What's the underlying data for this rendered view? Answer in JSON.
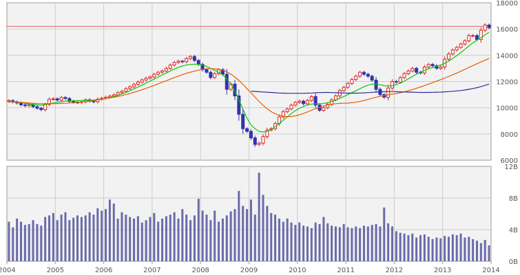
{
  "chart_data": [
    {
      "type": "candlestick",
      "x_unit": "year",
      "xlim": [
        2004.0,
        2014.0
      ],
      "ylim": [
        6000,
        18000
      ],
      "yticks": [
        6000,
        8000,
        10000,
        12000,
        14000,
        16000,
        18000
      ],
      "y_tick_labels": [
        "6000",
        "8000",
        "10000",
        "12000",
        "14000",
        "16000",
        "18000"
      ],
      "x_tick_labels": [
        "2004",
        "2005",
        "2006",
        "2007",
        "2008",
        "2009",
        "2010",
        "2011",
        "2012",
        "2013",
        "2014"
      ],
      "reference_line": 16200,
      "ohlc_monthly_close": [
        10540,
        10440,
        10360,
        10220,
        10150,
        10230,
        10080,
        9960,
        9850,
        10250,
        10650,
        10680,
        10580,
        10780,
        10700,
        10480,
        10420,
        10400,
        10450,
        10600,
        10500,
        10450,
        10650,
        10720,
        10800,
        10880,
        10980,
        11150,
        11250,
        11450,
        11600,
        11780,
        11950,
        12120,
        12250,
        12350,
        12550,
        12700,
        12800,
        13000,
        13250,
        13450,
        13550,
        13500,
        13750,
        13900,
        13600,
        13300,
        12900,
        12700,
        12300,
        12600,
        12900,
        12550,
        11400,
        11800,
        10900,
        9500,
        8400,
        8200,
        7700,
        7200,
        7300,
        7800,
        8300,
        8400,
        8800,
        9300,
        9700,
        9900,
        10200,
        10400,
        10500,
        10300,
        10550,
        10850,
        10200,
        9800,
        10000,
        10250,
        10600,
        10900,
        11300,
        11550,
        11850,
        12150,
        12400,
        12700,
        12550,
        12400,
        12100,
        11400,
        11000,
        10800,
        11500,
        12000,
        11950,
        12300,
        12600,
        12800,
        13000,
        12700,
        12650,
        13100,
        13300,
        13200,
        13000,
        13100,
        13700,
        14100,
        14400,
        14600,
        14850,
        15100,
        15500,
        15500,
        15200,
        15900,
        16300,
        16100
      ],
      "series": [
        {
          "name": "",
          "color": "#00cc00",
          "values": [
            10500,
            10470,
            10430,
            10380,
            10330,
            10290,
            10250,
            10220,
            10200,
            10230,
            10300,
            10360,
            10410,
            10460,
            10500,
            10520,
            10530,
            10540,
            10550,
            10560,
            10570,
            10580,
            10610,
            10650,
            10700,
            10770,
            10850,
            10940,
            11040,
            11160,
            11290,
            11430,
            11580,
            11730,
            11880,
            12030,
            12180,
            12340,
            12490,
            12640,
            12800,
            12950,
            13080,
            13180,
            13250,
            13300,
            13320,
            13310,
            13250,
            13150,
            13000,
            12850,
            12700,
            12500,
            12200,
            11800,
            11300,
            10600,
            9900,
            9200,
            8700,
            8400,
            8200,
            8150,
            8200,
            8350,
            8550,
            8800,
            9050,
            9300,
            9550,
            9780,
            9950,
            10100,
            10200,
            10280,
            10300,
            10300,
            10320,
            10380,
            10470,
            10580,
            10710,
            10850,
            11000,
            11150,
            11300,
            11450,
            11600,
            11720,
            11800,
            11800,
            11750,
            11680,
            11650,
            11680,
            11760,
            11880,
            12030,
            12200,
            12380,
            12550,
            12700,
            12840,
            12960,
            13060,
            13160,
            13260,
            13380,
            13550,
            13750,
            13970,
            14200,
            14450,
            14700,
            14950,
            15150,
            15350,
            15550,
            15750
          ]
        },
        {
          "name": "",
          "color": "#e65c00",
          "values": [
            10450,
            10440,
            10420,
            10400,
            10380,
            10360,
            10340,
            10320,
            10310,
            10300,
            10300,
            10310,
            10320,
            10330,
            10340,
            10360,
            10380,
            10400,
            10430,
            10460,
            10500,
            10550,
            10600,
            10650,
            10700,
            10750,
            10800,
            10850,
            10920,
            11000,
            11080,
            11170,
            11270,
            11370,
            11480,
            11590,
            11700,
            11820,
            11940,
            12060,
            12180,
            12300,
            12410,
            12520,
            12620,
            12710,
            12790,
            12860,
            12920,
            12960,
            12980,
            12970,
            12930,
            12850,
            12730,
            12560,
            12340,
            12080,
            11780,
            11460,
            11130,
            10800,
            10480,
            10180,
            9920,
            9700,
            9540,
            9420,
            9350,
            9320,
            9330,
            9380,
            9460,
            9560,
            9680,
            9800,
            9920,
            10030,
            10130,
            10210,
            10270,
            10310,
            10330,
            10340,
            10350,
            10380,
            10420,
            10480,
            10550,
            10630,
            10720,
            10800,
            10870,
            10930,
            10980,
            11030,
            11080,
            11140,
            11210,
            11290,
            11380,
            11480,
            11580,
            11690,
            11800,
            11910,
            12020,
            12140,
            12260,
            12380,
            12510,
            12640,
            12780,
            12920,
            13070,
            13210,
            13350,
            13490,
            13620,
            13750
          ]
        },
        {
          "name": "",
          "color": "#2b2b99",
          "values": [
            null,
            null,
            null,
            null,
            null,
            null,
            null,
            null,
            null,
            null,
            null,
            null,
            null,
            null,
            null,
            null,
            null,
            null,
            null,
            null,
            null,
            null,
            null,
            null,
            null,
            null,
            null,
            null,
            null,
            null,
            null,
            null,
            null,
            null,
            null,
            null,
            null,
            null,
            null,
            null,
            null,
            null,
            null,
            null,
            null,
            null,
            null,
            null,
            null,
            null,
            null,
            null,
            null,
            null,
            null,
            null,
            null,
            null,
            null,
            null,
            11260,
            11240,
            11220,
            11200,
            11180,
            11160,
            11140,
            11120,
            11110,
            11100,
            11100,
            11100,
            11100,
            11100,
            11110,
            11120,
            11140,
            11150,
            11160,
            11160,
            11150,
            11140,
            11130,
            11120,
            11110,
            11110,
            11110,
            11120,
            11130,
            11150,
            11170,
            11190,
            11210,
            11220,
            11230,
            11230,
            11220,
            11210,
            11200,
            11190,
            11180,
            11170,
            11160,
            11160,
            11160,
            11170,
            11180,
            11190,
            11210,
            11230,
            11250,
            11280,
            11310,
            11350,
            11400,
            11460,
            11530,
            11610,
            11700,
            11800
          ]
        }
      ]
    },
    {
      "type": "bar",
      "x_unit": "year",
      "xlim": [
        2004.0,
        2014.0
      ],
      "ylim": [
        0,
        12
      ],
      "yticks": [
        0,
        4,
        8,
        12
      ],
      "y_tick_labels": [
        "0B",
        "4B",
        "8B",
        "12B"
      ],
      "x_tick_labels": [
        "2004",
        "2005",
        "2006",
        "2007",
        "2008",
        "2009",
        "2010",
        "2011",
        "2012",
        "2013",
        "2014"
      ],
      "color": "#6a6aaa",
      "values": [
        5.0,
        4.3,
        5.4,
        5.0,
        4.6,
        4.7,
        5.2,
        4.7,
        4.5,
        5.6,
        5.8,
        6.1,
        5.2,
        5.9,
        6.2,
        5.2,
        5.5,
        5.8,
        5.6,
        5.8,
        6.2,
        5.9,
        6.7,
        6.4,
        6.6,
        7.8,
        7.3,
        5.4,
        6.2,
        5.9,
        5.6,
        5.4,
        5.7,
        4.9,
        5.2,
        5.6,
        6.1,
        5.0,
        5.4,
        5.7,
        5.9,
        6.2,
        5.4,
        6.6,
        5.9,
        5.2,
        5.8,
        7.9,
        6.4,
        5.9,
        5.2,
        6.4,
        5.0,
        5.4,
        5.8,
        6.3,
        6.6,
        8.9,
        7.0,
        6.6,
        7.8,
        5.9,
        11.2,
        8.4,
        7.0,
        6.1,
        5.9,
        5.4,
        5.0,
        5.4,
        4.9,
        4.6,
        4.9,
        4.5,
        4.4,
        4.2,
        4.9,
        4.7,
        5.6,
        4.8,
        4.5,
        4.4,
        4.3,
        4.7,
        4.3,
        4.2,
        4.4,
        4.2,
        4.5,
        4.4,
        4.6,
        4.7,
        4.4,
        6.8,
        4.8,
        4.4,
        3.8,
        3.6,
        3.5,
        3.3,
        3.5,
        3.0,
        3.3,
        3.4,
        3.1,
        2.8,
        3.0,
        2.9,
        3.2,
        3.1,
        3.4,
        3.3,
        3.5,
        3.0,
        3.1,
        2.8,
        2.6,
        2.3,
        2.7,
        2.0
      ]
    }
  ]
}
